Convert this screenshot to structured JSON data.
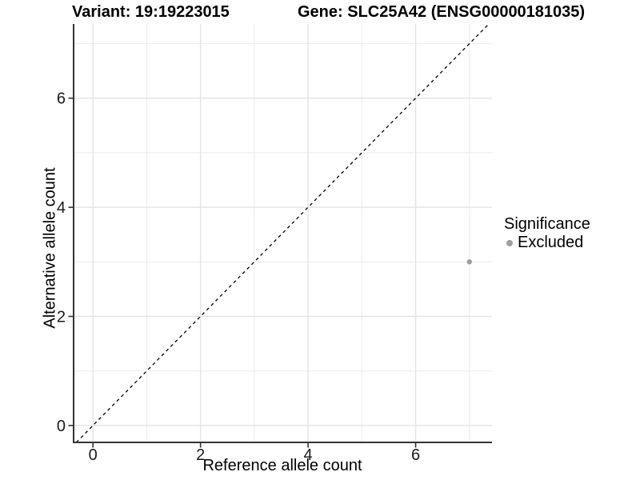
{
  "header": {
    "variant_title": "Variant: 19:19223015",
    "gene_title": "Gene: SLC25A42 (ENSG00000181035)"
  },
  "legend": {
    "title": "Significance",
    "items": [
      {
        "label": "Excluded",
        "color": "#9f9f9f"
      }
    ]
  },
  "chart_data": {
    "type": "scatter",
    "title_left": "Variant: 19:19223015",
    "title_right": "Gene: SLC25A42 (ENSG00000181035)",
    "xlabel": "Reference allele count",
    "ylabel": "Alternative allele count",
    "xlim": [
      -0.36,
      7.42
    ],
    "ylim": [
      -0.31,
      7.36
    ],
    "x_major_ticks": [
      0,
      2,
      4,
      6
    ],
    "y_major_ticks": [
      0,
      2,
      4,
      6
    ],
    "x_minor_gridlines": [
      1,
      3,
      5,
      7
    ],
    "y_minor_gridlines": [
      1,
      3,
      5,
      7
    ],
    "grid": "major+minor, light gray on white",
    "legend_position": "right-center",
    "series": [
      {
        "name": "Excluded",
        "color": "#9f9f9f",
        "marker": "circle",
        "marker_radius_px": 3.2,
        "points": [
          {
            "x": 7,
            "y": 3
          }
        ]
      }
    ],
    "reference_line": {
      "equation": "y = x",
      "style": "dashed",
      "color": "#000000"
    }
  },
  "style": {
    "axis_line_color": "#333333",
    "tick_color": "#333333",
    "tick_label_color": "#1a1a1a",
    "grid_major_color": "#e4e4e4",
    "grid_minor_color": "#eeeeee",
    "background": "#ffffff"
  }
}
